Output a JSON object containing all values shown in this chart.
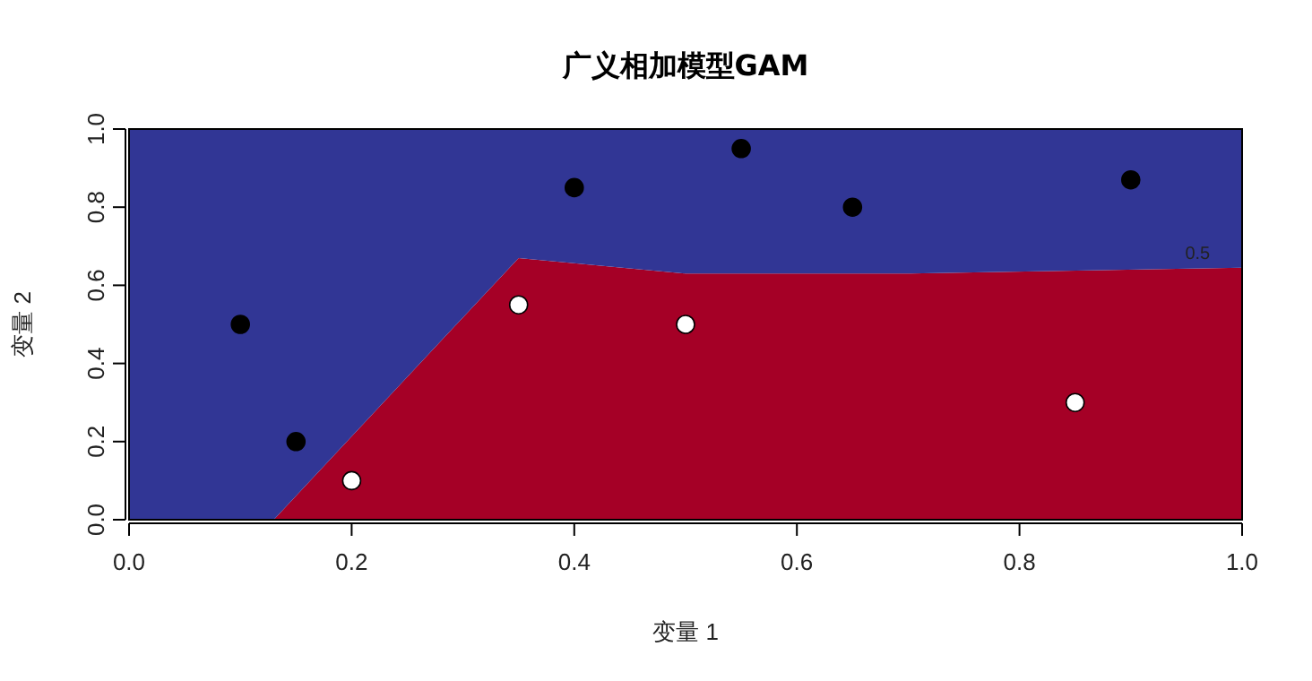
{
  "chart_data": {
    "type": "area",
    "title": "广义相加模型GAM",
    "xlabel": "变量 1",
    "ylabel": "变量 2",
    "stacked": true,
    "xlim": [
      0,
      1
    ],
    "ylim": [
      0,
      1
    ],
    "xticks": [
      {
        "value": 0,
        "label": "0.0"
      },
      {
        "value": 0.2,
        "label": "0.2"
      },
      {
        "value": 0.4,
        "label": "0.4"
      },
      {
        "value": 0.6,
        "label": "0.6"
      },
      {
        "value": 0.8,
        "label": "0.8"
      },
      {
        "value": 1,
        "label": "1.0"
      }
    ],
    "yticks": [
      {
        "value": 0,
        "label": "0.0"
      },
      {
        "value": 0.2,
        "label": "0.2"
      },
      {
        "value": 0.4,
        "label": "0.4"
      },
      {
        "value": 0.6,
        "label": "0.6"
      },
      {
        "value": 0.8,
        "label": "0.8"
      },
      {
        "value": 1,
        "label": "1.0"
      }
    ],
    "annotations": [
      {
        "text": "0.5",
        "x": 0.96,
        "y": 0.65
      }
    ],
    "series": [
      {
        "color": "#a50026",
        "x": [
          0,
          0.13,
          0.35,
          0.5,
          0.7,
          1
        ],
        "values": [
          0,
          0,
          0.67,
          0.63,
          0.63,
          0.645
        ]
      },
      {
        "color": "#313695",
        "x": [
          0,
          0.13,
          0.35,
          0.5,
          0.7,
          1
        ],
        "values": [
          1,
          1,
          0.33,
          0.37,
          0.37,
          0.355
        ]
      },
      {
        "type": "scatter",
        "color": "#000000",
        "marker": "circle",
        "x": [
          0.1,
          0.15,
          0.4,
          0.55,
          0.65,
          0.9
        ],
        "values": [
          0.5,
          0.2,
          0.85,
          0.95,
          0.8,
          0.87
        ]
      },
      {
        "type": "scatter",
        "color": "#ffffff",
        "marker": "circle",
        "x": [
          0.2,
          0.35,
          0.5,
          0.85
        ],
        "values": [
          0.1,
          0.55,
          0.5,
          0.3
        ]
      }
    ]
  }
}
